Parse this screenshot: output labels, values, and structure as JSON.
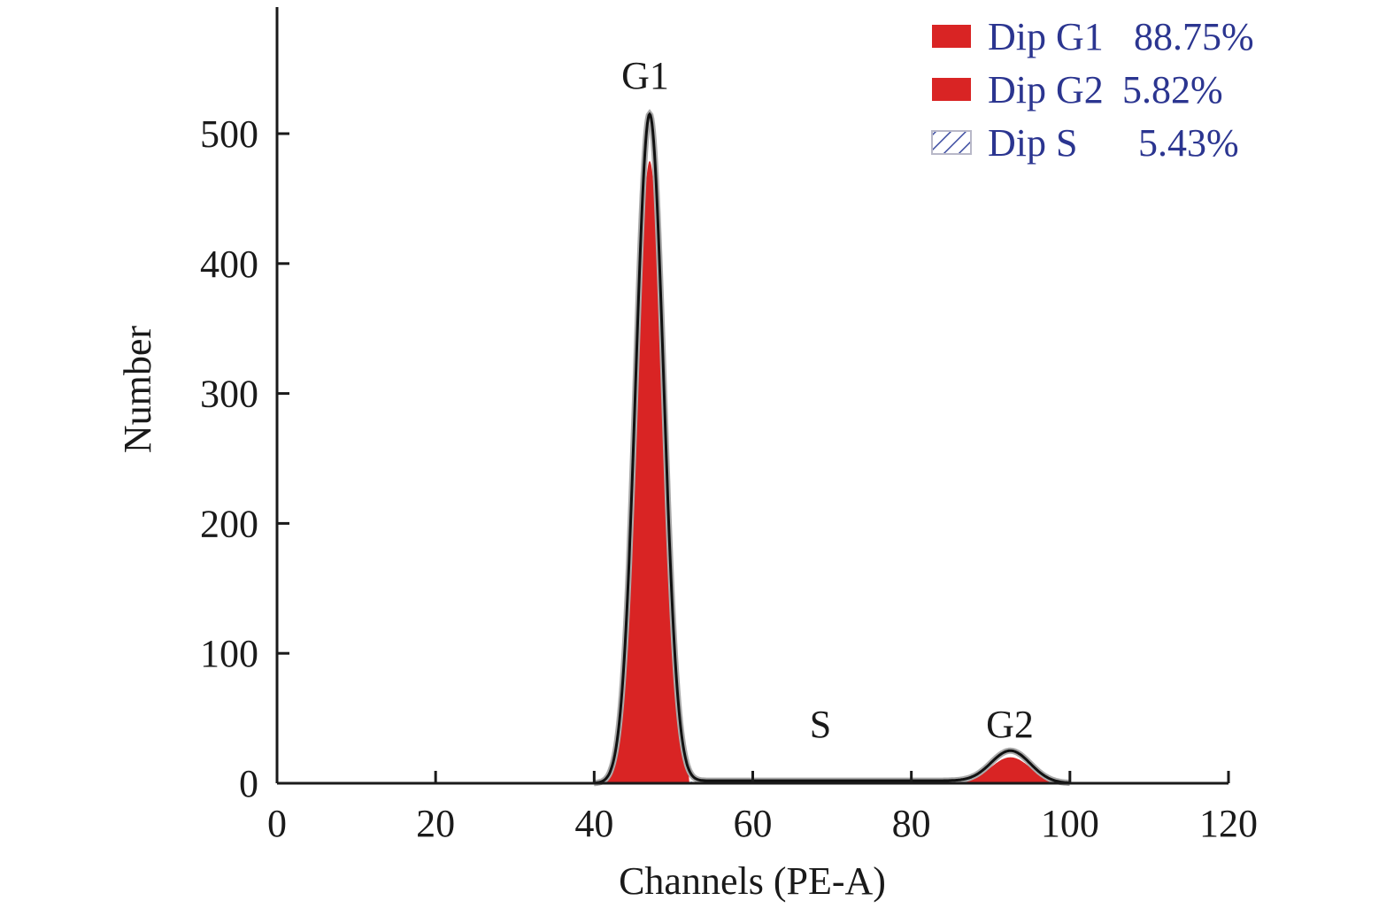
{
  "chart_data": {
    "type": "area",
    "title": "",
    "xlabel": "Channels (PE-A)",
    "ylabel": "Number",
    "xlim": [
      0,
      120
    ],
    "ylim": [
      0,
      600
    ],
    "x_ticks": [
      0,
      20,
      40,
      60,
      80,
      100,
      120
    ],
    "y_ticks": [
      0,
      100,
      200,
      300,
      400,
      500
    ],
    "grid": false,
    "legend_position": "top-right",
    "peak_labels": [
      {
        "text": "G1",
        "x": 47,
        "y": 515
      },
      {
        "text": "S",
        "x": 68,
        "y": 2
      },
      {
        "text": "G2",
        "x": 92.5,
        "y": 25
      }
    ],
    "series": [
      {
        "name": "Dip G1",
        "percent": "88.75%",
        "fill": "solid",
        "center": 47,
        "peak": 515,
        "sigma": 1.75
      },
      {
        "name": "Dip G2",
        "percent": "5.82%",
        "fill": "solid",
        "center": 92.5,
        "peak": 25,
        "sigma": 2.5
      },
      {
        "name": "Dip S",
        "percent": "5.43%",
        "fill": "hatched",
        "range": [
          52,
          88
        ],
        "level": 2
      }
    ],
    "legend": [
      {
        "label": "Dip G1",
        "value": "88.75%"
      },
      {
        "label": "Dip G2",
        "value": "5.82%"
      },
      {
        "label": "Dip S",
        "value": "5.43%"
      }
    ],
    "colors": {
      "fill": "#d92424",
      "outline": "#111111",
      "legend_text": "#2b3590",
      "hatch": "#3a4aa0"
    }
  }
}
